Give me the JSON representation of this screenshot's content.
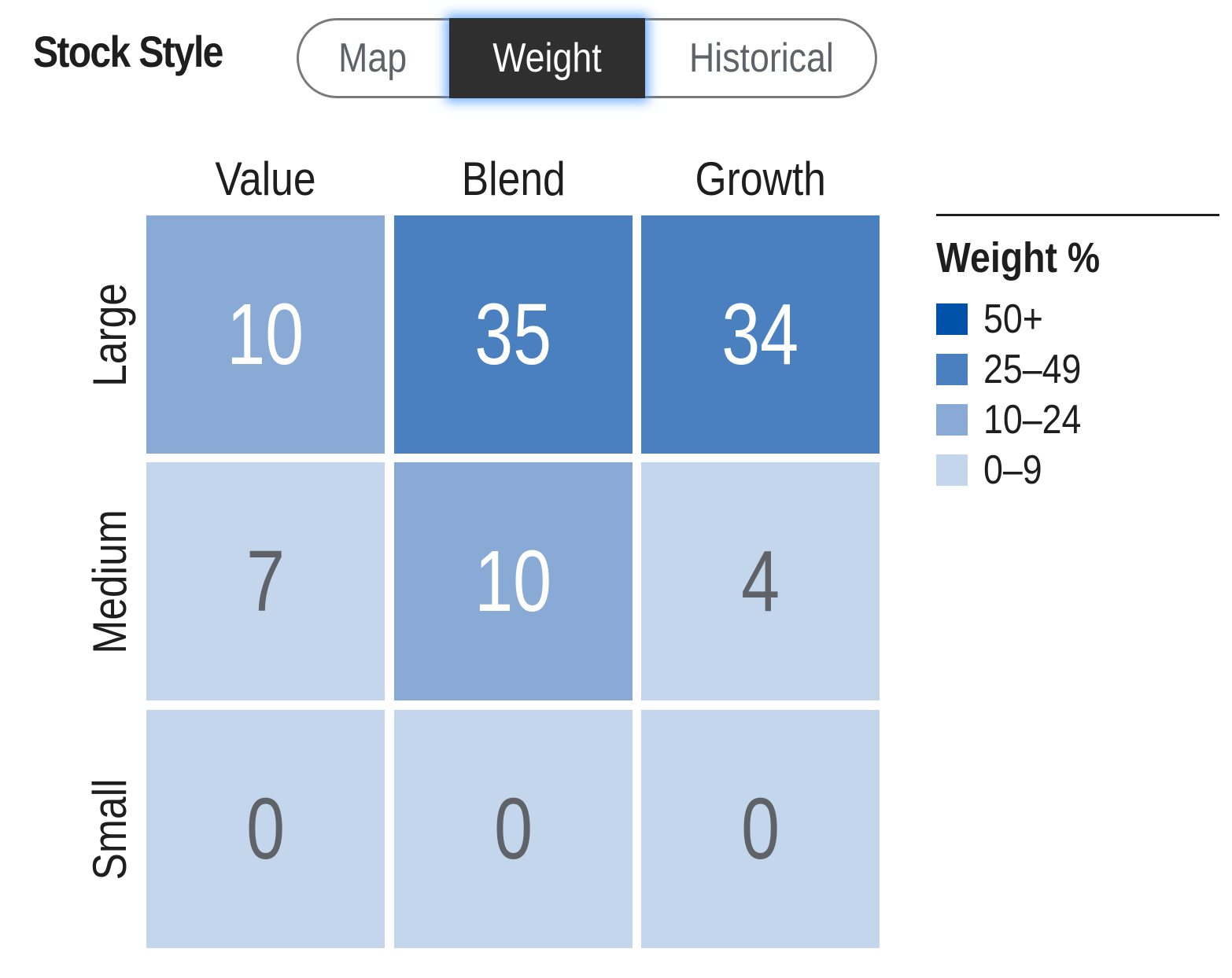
{
  "title": "Stock Style",
  "toggle": {
    "options": [
      "Map",
      "Weight",
      "Historical"
    ],
    "selected": "Weight"
  },
  "grid": {
    "columns": [
      "Value",
      "Blend",
      "Growth"
    ],
    "rows": [
      "Large",
      "Medium",
      "Small"
    ],
    "cells": [
      [
        "10",
        "35",
        "34"
      ],
      [
        "7",
        "10",
        "4"
      ],
      [
        "0",
        "0",
        "0"
      ]
    ]
  },
  "legend": {
    "title": "Weight %",
    "items": [
      {
        "label": "50+",
        "color": "#0052a9"
      },
      {
        "label": "25–49",
        "color": "#4a80c0"
      },
      {
        "label": "10–24",
        "color": "#89aad5"
      },
      {
        "label": "0–9",
        "color": "#c4d6ec"
      }
    ]
  },
  "colors": {
    "text_on_dark": "#ffffff",
    "text_on_light": "#5f6368"
  }
}
